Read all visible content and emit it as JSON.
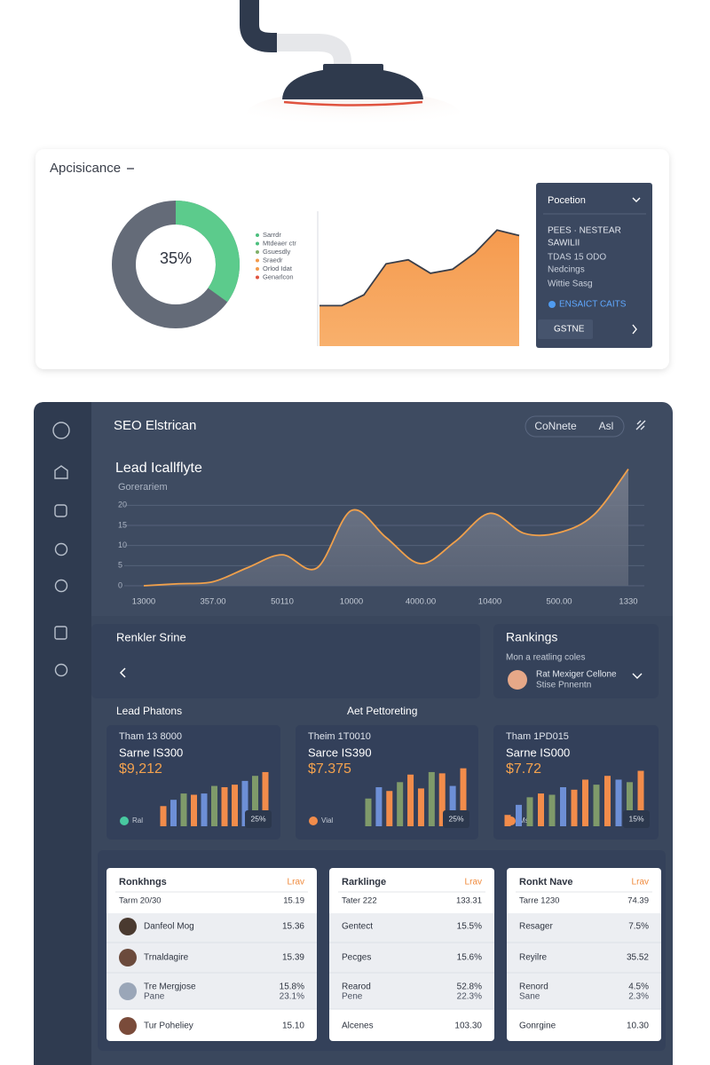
{
  "overview_card": {
    "title": "Apcisicance",
    "donut": {
      "type": "pie",
      "value": 35,
      "label": "35%",
      "color": "#5ccb8c"
    },
    "legend": [
      {
        "label": "Sarrdr",
        "color": "#4cbf7e"
      },
      {
        "label": "Mtdeaer ctr",
        "color": "#4cbf7e"
      },
      {
        "label": "Gsuesdly",
        "color": "#7fb069"
      },
      {
        "label": "Sraedr",
        "color": "#f29a4a"
      },
      {
        "label": "Orlod Idat",
        "color": "#f29a4a"
      },
      {
        "label": "Genarlcon",
        "color": "#e0533f"
      }
    ],
    "area": {
      "type": "area",
      "values": [
        30,
        30,
        38,
        61,
        64,
        54,
        57,
        69,
        86,
        82
      ],
      "ylim": [
        0,
        100
      ],
      "color": "#f7a055"
    }
  },
  "position_panel": {
    "title": "Pocetion",
    "lines": [
      "PEES · NESTEAR",
      "SAWILII",
      "TDAS 15 ODO",
      "Nedcings",
      "Wittie Sasg"
    ],
    "link": "ENSAICT CAITS",
    "button": "GSTNE"
  },
  "dashboard": {
    "title": "SEO Elstrican",
    "pills": [
      "CoNnete",
      "Asl"
    ],
    "lead_chart": {
      "type": "line",
      "title": "Lead Icallflyte",
      "subtitle": "Gorerariem",
      "categories": [
        "13000",
        null,
        "357.00",
        null,
        "50110",
        null,
        "10000",
        null,
        "4000.00",
        null,
        "10400",
        null,
        "500.00",
        null,
        "1330"
      ],
      "values": [
        0,
        0.5,
        1,
        4.5,
        7.7,
        4.4,
        18.7,
        12,
        5.5,
        11,
        18,
        13,
        13.2,
        17.6,
        29
      ],
      "ylim": [
        0,
        30
      ],
      "yticks": [
        0,
        5,
        10,
        15,
        20
      ],
      "grid": true,
      "color": "#f0a04b"
    },
    "summary_card": {
      "title": "Renkler Srine"
    },
    "rankings_card": {
      "title": "Rankings",
      "subtitle": "Mon a reatling coles",
      "person": "Rat Mexiger Cellone",
      "role": "Stise Pnnentn"
    },
    "section_labels": [
      "Lead Phatons",
      "Aet Pettoreting"
    ],
    "metrics": [
      {
        "type": "bar",
        "line1": "Tham 13 8000",
        "line2": "Sarne IS300",
        "amount": "$9,212",
        "legend": "Ral",
        "legend_color": "#48c9a0",
        "badge": "25%",
        "ylim": [
          0,
          100
        ],
        "values": [
          32,
          42,
          52,
          50,
          52,
          64,
          62,
          66,
          72,
          80,
          86
        ],
        "colors": [
          "#f28c4b",
          "#6d8fd6",
          "#7f9a6a",
          "#f28c4b",
          "#6d8fd6",
          "#7f9a6a",
          "#f28c4b",
          "#f28c4b",
          "#6d8fd6",
          "#7f9a6a",
          "#f28c4b"
        ]
      },
      {
        "type": "bar",
        "line1": "Theim 1T0010",
        "line2": "Sarce IS390",
        "amount": "$7.375",
        "legend": "Vial",
        "legend_color": "#f28c4b",
        "badge": "25%",
        "ylim": [
          0,
          100
        ],
        "values": [
          44,
          62,
          56,
          70,
          82,
          60,
          86,
          84,
          64,
          92
        ],
        "colors": [
          "#7f9a6a",
          "#6d8fd6",
          "#f28c4b",
          "#7f9a6a",
          "#f28c4b",
          "#f28c4b",
          "#7f9a6a",
          "#f28c4b",
          "#6d8fd6",
          "#f28c4b"
        ]
      },
      {
        "type": "bar",
        "line1": "Tham 1PD015",
        "line2": "Sarne IS000",
        "amount": "$7.72",
        "legend": "Ms",
        "legend_color": "#f28c4b",
        "badge": "15%",
        "ylim": [
          0,
          100
        ],
        "values": [
          18,
          34,
          46,
          52,
          50,
          62,
          58,
          74,
          66,
          80,
          74,
          70,
          88
        ],
        "colors": [
          "#f28c4b",
          "#6d8fd6",
          "#7f9a6a",
          "#f28c4b",
          "#7f9a6a",
          "#6d8fd6",
          "#f28c4b",
          "#f28c4b",
          "#7f9a6a",
          "#f28c4b",
          "#6d8fd6",
          "#7f9a6a",
          "#f28c4b"
        ]
      }
    ],
    "tables": [
      {
        "title": "Ronkhngs",
        "link": "Lrav",
        "rows": [
          [
            "Tarm 20/30",
            "15.19"
          ],
          [
            "Danfeol Mog",
            "15.36"
          ],
          [
            "Trnaldagire",
            "15.39"
          ],
          [
            "Tre Mergjose",
            "15.8%",
            "Pane",
            "23.1%"
          ],
          [
            "Tur Poheliey",
            "15.10"
          ]
        ]
      },
      {
        "title": "Rarklinge",
        "link": "Lrav",
        "rows": [
          [
            "Tater 222",
            "133.31"
          ],
          [
            "Gentect",
            "15.5%"
          ],
          [
            "Pecges",
            "15.6%"
          ],
          [
            "Rearod",
            "52.8%",
            "Pene",
            "22.3%"
          ],
          [
            "Alcenes",
            "103.30"
          ]
        ]
      },
      {
        "title": "Ronkt Nave",
        "link": "Lrav",
        "rows": [
          [
            "Tarre 1230",
            "74.39"
          ],
          [
            "Resager",
            "7.5%"
          ],
          [
            "Reyilre",
            "35.52"
          ],
          [
            "Renord",
            "4.5%",
            "Sane",
            "2.3%"
          ],
          [
            "Gonrgine",
            "10.30"
          ]
        ]
      }
    ]
  }
}
